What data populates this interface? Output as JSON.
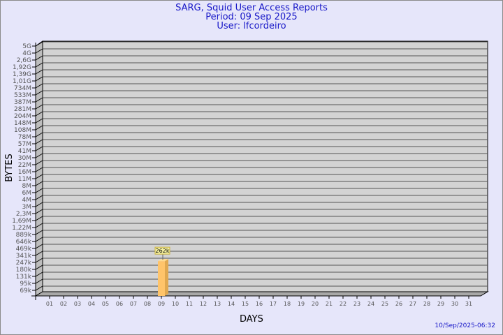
{
  "chart_data": {
    "type": "bar",
    "title": "SARG, Squid User Access Reports",
    "subtitle": [
      "Period: 09 Sep 2025",
      "User: lfcordeiro"
    ],
    "xlabel": "DAYS",
    "ylabel": "BYTES",
    "categories": [
      "01",
      "02",
      "03",
      "04",
      "05",
      "06",
      "07",
      "08",
      "09",
      "10",
      "11",
      "12",
      "13",
      "14",
      "15",
      "16",
      "17",
      "18",
      "19",
      "20",
      "21",
      "22",
      "23",
      "24",
      "25",
      "26",
      "27",
      "28",
      "29",
      "30",
      "31"
    ],
    "values": [
      null,
      null,
      null,
      null,
      null,
      null,
      null,
      null,
      262000,
      null,
      null,
      null,
      null,
      null,
      null,
      null,
      null,
      null,
      null,
      null,
      null,
      null,
      null,
      null,
      null,
      null,
      null,
      null,
      null,
      null,
      null
    ],
    "data_labels": {
      "09": "262k"
    },
    "yscale": "log",
    "ytick_labels": [
      "5G",
      "4G",
      "2,6G",
      "1,92G",
      "1,39G",
      "1,01G",
      "734M",
      "533M",
      "387M",
      "281M",
      "204M",
      "148M",
      "108M",
      "78M",
      "57M",
      "41M",
      "30M",
      "22M",
      "16M",
      "11M",
      "8M",
      "6M",
      "4M",
      "3M",
      "2,3M",
      "1,69M",
      "1,22M",
      "889k",
      "646k",
      "469k",
      "341k",
      "247k",
      "180k",
      "131k",
      "95k",
      "69k"
    ],
    "ytick_values": [
      5000000000.0,
      4000000000.0,
      2600000000.0,
      1920000000.0,
      1390000000.0,
      1010000000.0,
      734000000.0,
      533000000.0,
      387000000.0,
      281000000.0,
      204000000.0,
      148000000.0,
      108000000.0,
      78000000.0,
      57000000.0,
      41000000.0,
      30000000.0,
      22000000.0,
      16000000.0,
      11000000.0,
      8000000.0,
      6000000.0,
      4000000.0,
      3000000.0,
      2300000.0,
      1690000.0,
      1220000.0,
      889000.0,
      646000.0,
      469000.0,
      341000.0,
      247000.0,
      180000.0,
      131000.0,
      95000.0,
      69000.0
    ],
    "grid": true,
    "colors": {
      "background": "#e6e6fa",
      "plot": "#d3d3d3",
      "bar": "#ffc46a",
      "bar_side": "#e0a850",
      "title": "#1818c8"
    }
  },
  "footer": "10/Sep/2025-06:32"
}
